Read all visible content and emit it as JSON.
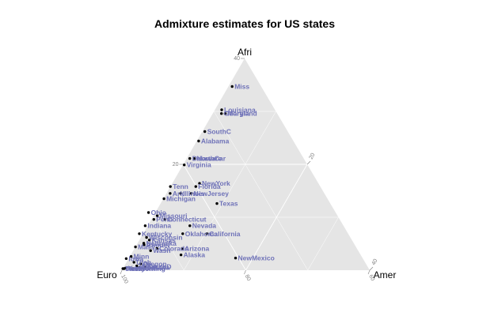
{
  "chart_data": {
    "type": "scatter",
    "subtype": "ternary",
    "title": "Admixture estimates for US states",
    "axes": {
      "top": "Afri",
      "left": "Euro",
      "right": "Amer"
    },
    "tick_labels": {
      "afri": [
        "40",
        "20"
      ],
      "amer": [
        "20",
        "40"
      ],
      "euro": [
        "100",
        "80",
        "60"
      ]
    },
    "ranges": {
      "afri": [
        0,
        40
      ],
      "amer": [
        0,
        40
      ],
      "euro": [
        60,
        100
      ]
    },
    "grid": true,
    "panel_color": "#e5e5e5",
    "grid_color": "#ffffff",
    "point_color": "#000000",
    "label_color": "#6f72b8",
    "points": [
      {
        "label": "Miss",
        "afri": 34.7,
        "amer": 0.6
      },
      {
        "label": "Louisiana",
        "afri": 30.3,
        "amer": 1.1
      },
      {
        "label": "Maryland",
        "afri": 29.6,
        "amer": 2.0
      },
      {
        "label": "Georgia",
        "afri": 29.6,
        "amer": 1.4
      },
      {
        "label": "SouthC",
        "afri": 26.2,
        "amer": 0.4
      },
      {
        "label": "Alabama",
        "afri": 24.4,
        "amer": 0.3
      },
      {
        "label": "NorthCar",
        "afri": 21.1,
        "amer": 1.2
      },
      {
        "label": "Delaware",
        "afri": 21.1,
        "amer": 0.5
      },
      {
        "label": "Virginia",
        "afri": 19.9,
        "amer": 0.2
      },
      {
        "label": "NewYork",
        "afri": 16.4,
        "amer": 4.4
      },
      {
        "label": "Florida",
        "afri": 15.8,
        "amer": 4.1
      },
      {
        "label": "Tenn",
        "afri": 15.8,
        "amer": 0.0
      },
      {
        "label": "Ark",
        "afri": 14.5,
        "amer": 0.6
      },
      {
        "label": "Illinois",
        "afri": 14.5,
        "amer": 2.3
      },
      {
        "label": "NewJersey",
        "afri": 14.5,
        "amer": 4.0
      },
      {
        "label": "Michigan",
        "afri": 13.5,
        "amer": 0.1
      },
      {
        "label": "Texas",
        "afri": 12.6,
        "amer": 9.1
      },
      {
        "label": "Ohio",
        "afri": 10.9,
        "amer": -1.1
      },
      {
        "label": "Missouri",
        "afri": 10.3,
        "amer": 0.6
      },
      {
        "label": "Penn",
        "afri": 9.6,
        "amer": 0.4
      },
      {
        "label": "Connecticut",
        "afri": 9.6,
        "amer": 2.2
      },
      {
        "label": "Indiana",
        "afri": 8.4,
        "amer": -0.4
      },
      {
        "label": "Nevada",
        "afri": 8.4,
        "amer": 6.8
      },
      {
        "label": "California",
        "afri": 6.9,
        "amer": 10.3
      },
      {
        "label": "Oklahoma",
        "afri": 6.9,
        "amer": 6.4
      },
      {
        "label": "Kentucky",
        "afri": 6.9,
        "amer": -0.6
      },
      {
        "label": "Wisconsin",
        "afri": 6.2,
        "amer": 0.9
      },
      {
        "label": "Kansas",
        "afri": 5.7,
        "amer": 1.6
      },
      {
        "label": "Nebraska",
        "afri": 5.1,
        "amer": 1.0
      },
      {
        "label": "RhodeI",
        "afri": 4.8,
        "amer": 1.2
      },
      {
        "label": "Mass",
        "afri": 4.4,
        "amer": 0.0
      },
      {
        "label": "Colorado",
        "afri": 4.1,
        "amer": 3.6
      },
      {
        "label": "Wash",
        "afri": 3.7,
        "amer": 2.8
      },
      {
        "label": "Arizona",
        "afri": 4.1,
        "amer": 7.7
      },
      {
        "label": "Alaska",
        "afri": 2.9,
        "amer": 8.1
      },
      {
        "label": "NewMexico",
        "afri": 2.3,
        "amer": 17.2
      },
      {
        "label": "Minn",
        "afri": 2.6,
        "amer": 0.2
      },
      {
        "label": "Iowa",
        "afri": 2.2,
        "amer": -0.4
      },
      {
        "label": "Utah",
        "afri": 1.5,
        "amer": 1.2
      },
      {
        "label": "Oregon",
        "afri": 1.2,
        "amer": 2.4
      },
      {
        "label": "Idaho",
        "afri": 0.8,
        "amer": 2.0
      },
      {
        "label": "SouthD",
        "afri": 0.7,
        "amer": 3.4
      },
      {
        "label": "Montana",
        "afri": 0.5,
        "amer": 2.6
      },
      {
        "label": "Vermont",
        "afri": 0.4,
        "amer": 0.4
      },
      {
        "label": "NewH",
        "afri": 0.3,
        "amer": 0.2
      },
      {
        "label": "Maine",
        "afri": 0.3,
        "amer": 0.0
      },
      {
        "label": "Wyoming",
        "afri": 0.3,
        "amer": 1.6
      }
    ]
  }
}
